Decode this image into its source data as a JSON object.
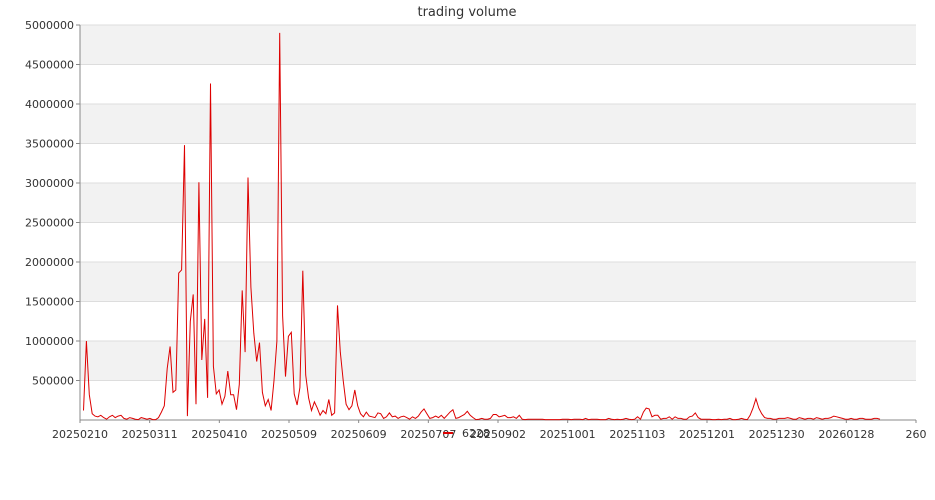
{
  "chart_data": {
    "type": "line",
    "title": "trading volume",
    "xlabel": "",
    "ylabel": "",
    "ylim": [
      0,
      5000000
    ],
    "yticks": [
      500000,
      1000000,
      1500000,
      2000000,
      2500000,
      3000000,
      3500000,
      4000000,
      4500000,
      5000000
    ],
    "xtick_labels": [
      "20250210",
      "20250311",
      "20250410",
      "20250509",
      "20250609",
      "20250707",
      "20250902",
      "20251001",
      "20251103",
      "20251201",
      "20251230",
      "20260128",
      "260"
    ],
    "grid": true,
    "legend_position": "bottom-center",
    "series": [
      {
        "name": "6228",
        "color": "#dd0000",
        "x_start": "20250210",
        "values": [
          120000,
          1000000,
          320000,
          80000,
          50000,
          40000,
          60000,
          30000,
          10000,
          40000,
          60000,
          30000,
          50000,
          60000,
          20000,
          10000,
          30000,
          20000,
          10000,
          5000,
          30000,
          20000,
          10000,
          20000,
          5000,
          5000,
          30000,
          100000,
          180000,
          650000,
          930000,
          350000,
          380000,
          1860000,
          1900000,
          3480000,
          50000,
          1250000,
          1590000,
          200000,
          3010000,
          760000,
          1280000,
          280000,
          4260000,
          680000,
          330000,
          380000,
          200000,
          300000,
          620000,
          320000,
          320000,
          130000,
          450000,
          1640000,
          860000,
          3070000,
          1680000,
          1100000,
          740000,
          980000,
          350000,
          180000,
          260000,
          120000,
          500000,
          1000000,
          4900000,
          1320000,
          550000,
          1060000,
          1110000,
          330000,
          190000,
          410000,
          1890000,
          570000,
          280000,
          120000,
          230000,
          150000,
          60000,
          120000,
          80000,
          260000,
          60000,
          90000,
          1450000,
          860000,
          500000,
          200000,
          130000,
          180000,
          380000,
          180000,
          80000,
          40000,
          100000,
          50000,
          40000,
          30000,
          90000,
          80000,
          20000,
          40000,
          90000,
          40000,
          50000,
          20000,
          40000,
          50000,
          30000,
          10000,
          40000,
          20000,
          50000,
          100000,
          140000,
          80000,
          20000,
          30000,
          50000,
          30000,
          60000,
          20000,
          60000,
          100000,
          130000,
          20000,
          30000,
          50000,
          70000,
          110000,
          60000,
          30000,
          5000,
          10000,
          20000,
          10000,
          10000,
          20000,
          70000,
          70000,
          40000,
          50000,
          60000,
          30000,
          30000,
          40000,
          20000,
          60000,
          10000,
          5000,
          10000,
          10000,
          10000,
          10000,
          10000,
          10000,
          5000,
          5000,
          5000,
          5000,
          5000,
          5000,
          10000,
          10000,
          10000,
          5000,
          10000,
          10000,
          10000,
          5000,
          20000,
          5000,
          10000,
          10000,
          10000,
          5000,
          5000,
          5000,
          20000,
          10000,
          5000,
          10000,
          5000,
          10000,
          20000,
          10000,
          5000,
          10000,
          40000,
          10000,
          100000,
          150000,
          140000,
          40000,
          60000,
          60000,
          10000,
          20000,
          20000,
          40000,
          10000,
          40000,
          20000,
          20000,
          10000,
          10000,
          40000,
          50000,
          90000,
          30000,
          10000,
          10000,
          10000,
          10000,
          5000,
          5000,
          10000,
          5000,
          10000,
          10000,
          20000,
          5000,
          5000,
          10000,
          20000,
          10000,
          5000,
          60000,
          150000,
          270000,
          150000,
          80000,
          30000,
          20000,
          20000,
          10000,
          10000,
          20000,
          20000,
          20000,
          30000,
          20000,
          10000,
          10000,
          30000,
          20000,
          10000,
          20000,
          20000,
          10000,
          30000,
          20000,
          10000,
          20000,
          20000,
          30000,
          50000,
          40000,
          30000,
          20000,
          10000,
          10000,
          20000,
          10000,
          10000,
          20000,
          20000,
          10000,
          10000,
          10000,
          20000,
          20000,
          10000
        ]
      }
    ]
  }
}
